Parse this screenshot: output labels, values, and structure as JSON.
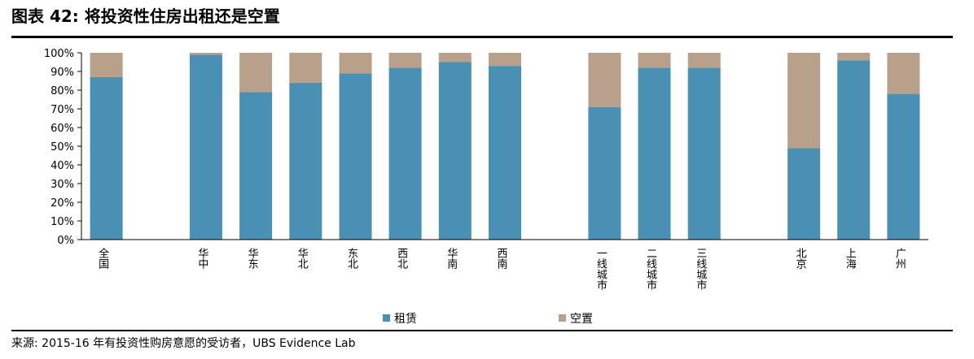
{
  "header": {
    "title": "图表 42: 将投资性住房出租还是空置"
  },
  "footer": {
    "source": "来源: 2015-16 年有投资性购房意愿的受访者，UBS Evidence Lab"
  },
  "chart_data": {
    "type": "bar",
    "stacked": true,
    "title": "图表 42: 将投资性住房出租还是空置",
    "categories": [
      "全国",
      "华中",
      "华东",
      "华北",
      "东北",
      "西北",
      "华南",
      "西南",
      "一线城市",
      "二线城市",
      "三线城市",
      "北京",
      "上海",
      "广州"
    ],
    "slots": [
      0,
      2,
      3,
      4,
      5,
      6,
      7,
      8,
      10,
      11,
      12,
      14,
      15,
      16
    ],
    "slot_count": 17,
    "series": [
      {
        "name": "租赁",
        "color": "#4a90b4",
        "values": [
          87,
          99,
          79,
          84,
          89,
          92,
          95,
          93,
          71,
          92,
          92,
          49,
          96,
          78
        ]
      },
      {
        "name": "空置",
        "color": "#b8a08a",
        "values": [
          13,
          1,
          21,
          16,
          11,
          8,
          5,
          7,
          29,
          8,
          8,
          51,
          4,
          22
        ]
      }
    ],
    "ylim": [
      0,
      100
    ],
    "yticks": [
      "0%",
      "10%",
      "20%",
      "30%",
      "40%",
      "50%",
      "60%",
      "70%",
      "80%",
      "90%",
      "100%"
    ],
    "xlabel": "",
    "ylabel": "",
    "legend": "bottom-center",
    "grid": false
  }
}
